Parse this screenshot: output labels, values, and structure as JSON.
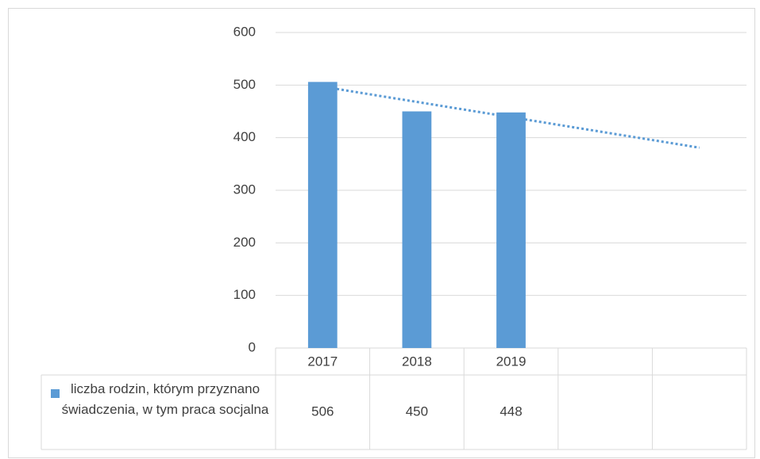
{
  "chart_data": {
    "type": "bar",
    "categories": [
      "2017",
      "2018",
      "2019",
      null,
      null
    ],
    "series": [
      {
        "name": "liczba rodzin, którym przyznano świadczenia, w tym praca socjalna",
        "color": "#5b9bd5",
        "values": [
          506,
          450,
          448,
          null,
          null
        ]
      }
    ],
    "ylim": [
      0,
      600
    ],
    "yticks": [
      0,
      100,
      200,
      300,
      400,
      500,
      600
    ],
    "grid": true,
    "trendline": "linear",
    "data_table": true
  }
}
